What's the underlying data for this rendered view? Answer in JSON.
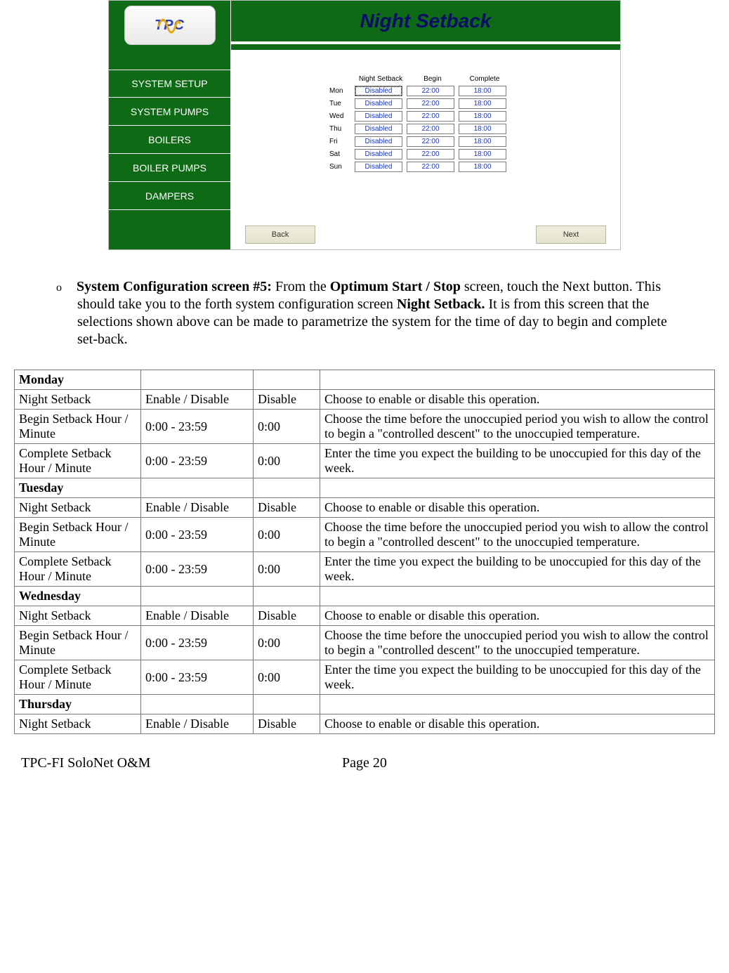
{
  "ui": {
    "logo_text": "TPC",
    "title": "Night Setback",
    "nav_items": [
      {
        "label": "SYSTEM SETUP"
      },
      {
        "label": "SYSTEM PUMPS"
      },
      {
        "label": "BOILERS"
      },
      {
        "label": "BOILER PUMPS"
      },
      {
        "label": "DAMPERS"
      }
    ],
    "schedule": {
      "headers": {
        "setback": "Night Setback",
        "begin": "Begin",
        "complete": "Complete"
      },
      "rows": [
        {
          "day": "Mon",
          "setback": "Disabled",
          "begin": "22:00",
          "complete": "18:00",
          "focus": true
        },
        {
          "day": "Tue",
          "setback": "Disabled",
          "begin": "22:00",
          "complete": "18:00"
        },
        {
          "day": "Wed",
          "setback": "Disabled",
          "begin": "22:00",
          "complete": "18:00"
        },
        {
          "day": "Thu",
          "setback": "Disabled",
          "begin": "22:00",
          "complete": "18:00"
        },
        {
          "day": "Fri",
          "setback": "Disabled",
          "begin": "22:00",
          "complete": "18:00"
        },
        {
          "day": "Sat",
          "setback": "Disabled",
          "begin": "22:00",
          "complete": "18:00"
        },
        {
          "day": "Sun",
          "setback": "Disabled",
          "begin": "22:00",
          "complete": "18:00"
        }
      ]
    },
    "back_label": "Back",
    "next_label": "Next"
  },
  "body": {
    "bullet": "o",
    "lead_bold": "System Configuration screen #5:",
    "lead_mid1": "  From the ",
    "lead_bold2": "Optimum Start / Stop",
    "lead_mid2": " screen, touch the Next button.  This should take you to the forth system configuration screen ",
    "lead_bold3": "Night Setback.",
    "lead_tail": "  It is from this screen that the selections shown above can be made to parametrize the system for the time of day to begin and complete set-back."
  },
  "table": {
    "days": [
      {
        "name": "Monday",
        "rows": [
          {
            "param": "Night Setback",
            "range": "Enable / Disable",
            "default": "Disable",
            "desc": "Choose to enable or disable this operation."
          },
          {
            "param": "Begin Setback Hour / Minute",
            "range": "0:00 - 23:59",
            "default": "0:00",
            "desc": "Choose the time before the unoccupied period you wish to allow the control to begin a \"controlled descent\" to the unoccupied temperature."
          },
          {
            "param": "Complete Setback Hour / Minute",
            "range": "0:00 - 23:59",
            "default": "0:00",
            "desc": "Enter the time you expect the building to be unoccupied for this day of the week."
          }
        ]
      },
      {
        "name": "Tuesday",
        "rows": [
          {
            "param": "Night Setback",
            "range": "Enable / Disable",
            "default": "Disable",
            "desc": "Choose to enable or disable this operation."
          },
          {
            "param": "Begin Setback Hour / Minute",
            "range": "0:00 - 23:59",
            "default": "0:00",
            "desc": "Choose the time before the unoccupied period you wish to allow the control to begin a \"controlled descent\" to the unoccupied temperature."
          },
          {
            "param": "Complete Setback Hour / Minute",
            "range": "0:00 - 23:59",
            "default": "0:00",
            "desc": "Enter the time you expect the building to be unoccupied for this day of the week."
          }
        ]
      },
      {
        "name": "Wednesday",
        "rows": [
          {
            "param": "Night Setback",
            "range": "Enable / Disable",
            "default": "Disable",
            "desc": "Choose to enable or disable this operation."
          },
          {
            "param": "Begin Setback Hour / Minute",
            "range": "0:00 - 23:59",
            "default": "0:00",
            "desc": "Choose the time before the unoccupied period you wish to allow the control to begin a \"controlled descent\" to the unoccupied temperature."
          },
          {
            "param": "Complete Setback Hour / Minute",
            "range": "0:00 - 23:59",
            "default": "0:00",
            "desc": "Enter the time you expect the building to be unoccupied for this day of the week."
          }
        ]
      },
      {
        "name": "Thursday",
        "rows": [
          {
            "param": "Night Setback",
            "range": "Enable / Disable",
            "default": "Disable",
            "desc": "Choose to enable or disable this operation."
          }
        ]
      }
    ]
  },
  "footer": {
    "left": "TPC-FI SoloNet O&M",
    "center": "Page 20"
  }
}
